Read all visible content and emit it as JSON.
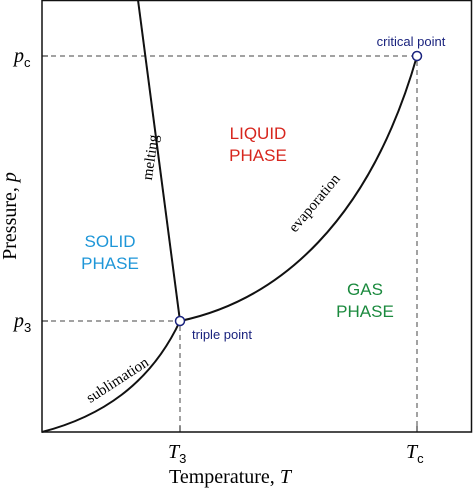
{
  "axes": {
    "x_title": {
      "text": "Temperature,",
      "symbol": "T"
    },
    "y_title": {
      "text": "Pressure,",
      "symbol": "p"
    },
    "x_ticks": [
      {
        "symbol": "T",
        "subscript": "3"
      },
      {
        "symbol": "T",
        "subscript": "c"
      }
    ],
    "y_ticks": [
      {
        "symbol": "p",
        "subscript": "c"
      },
      {
        "symbol": "p",
        "subscript": "3"
      }
    ]
  },
  "regions": {
    "liquid": {
      "lines": [
        "LIQUID",
        "PHASE"
      ]
    },
    "solid": {
      "lines": [
        "SOLID",
        "PHASE"
      ]
    },
    "gas": {
      "lines": [
        "GAS",
        "PHASE"
      ]
    }
  },
  "curves": {
    "melting": "melting",
    "evaporation": "evaporation",
    "sublimation": "sublimation"
  },
  "points": {
    "critical": "critical point",
    "triple": "triple point"
  }
}
